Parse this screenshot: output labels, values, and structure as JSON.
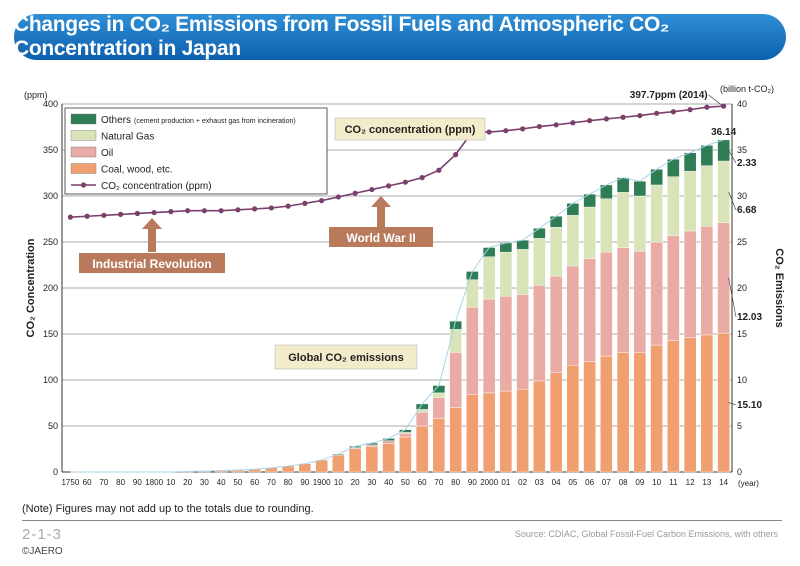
{
  "header": {
    "title": "Changes in CO₂ Emissions from Fossil Fuels and Atmospheric CO₂ Concentration in Japan"
  },
  "footer": {
    "note": "(Note) Figures may not add up to the totals due to rounding.",
    "figure_number": "2-1-3",
    "copyright": "©JAERO",
    "source": "Source: CDIAC, Global Fossil-Fuel Carbon Emissions, with others"
  },
  "colors": {
    "others": "#2e7d55",
    "natural_gas": "#d8e4b8",
    "oil": "#e9aba3",
    "coal": "#f0a070",
    "co2_line": "#7b3f6b",
    "arrow": "#b97a5c",
    "callout_bg": "#f3eccb"
  },
  "chart_data": {
    "type": "bar",
    "stacked": true,
    "left_axis": {
      "label": "CO₂ Concentration",
      "unit": "(ppm)",
      "range": [
        0,
        400
      ],
      "ticks": [
        "0",
        "50",
        "100",
        "150",
        "200",
        "250",
        "300",
        "350",
        "400"
      ]
    },
    "right_axis": {
      "label": "CO₂ Emissions",
      "unit": "(billion t-CO₂)",
      "range": [
        0,
        40
      ],
      "ticks": [
        "0",
        "5",
        "10",
        "15",
        "20",
        "25",
        "30",
        "35",
        "40"
      ]
    },
    "x_axis_unit": "(year)",
    "x_tick_labels": [
      "1750",
      "60",
      "70",
      "80",
      "90",
      "1800",
      "10",
      "20",
      "30",
      "40",
      "50",
      "60",
      "70",
      "80",
      "90",
      "1900",
      "10",
      "20",
      "30",
      "40",
      "50",
      "60",
      "70",
      "80",
      "90",
      "2000",
      "01",
      "02",
      "03",
      "04",
      "05",
      "06",
      "07",
      "08",
      "09",
      "10",
      "11",
      "12",
      "13",
      "14"
    ],
    "legend": [
      {
        "key": "others",
        "label": "Others",
        "sublabel": "(cement production + exhaust gas from incineration)"
      },
      {
        "key": "natural_gas",
        "label": "Natural Gas"
      },
      {
        "key": "oil",
        "label": "Oil"
      },
      {
        "key": "coal",
        "label": "Coal, wood, etc."
      },
      {
        "key": "co2",
        "label": "CO₂ concentration (ppm)"
      }
    ],
    "series": [
      {
        "name": "Coal, wood, etc.",
        "key": "coal",
        "values": [
          0,
          0,
          0,
          0,
          0,
          0,
          0,
          0.05,
          0.1,
          0.15,
          0.2,
          0.3,
          0.45,
          0.65,
          0.9,
          1.3,
          1.85,
          2.55,
          2.75,
          3.1,
          3.8,
          5.0,
          5.8,
          7.0,
          8.4,
          8.6,
          8.8,
          9.0,
          9.9,
          10.8,
          11.6,
          12.0,
          12.6,
          13.0,
          13.0,
          13.8,
          14.3,
          14.6,
          14.9,
          15.1
        ]
      },
      {
        "name": "Oil",
        "key": "oil",
        "values": [
          0,
          0,
          0,
          0,
          0,
          0,
          0,
          0,
          0,
          0,
          0,
          0,
          0,
          0,
          0,
          0,
          0,
          0.1,
          0.2,
          0.3,
          0.4,
          1.5,
          2.3,
          6.0,
          9.5,
          10.2,
          10.3,
          10.3,
          10.4,
          10.5,
          10.8,
          11.2,
          11.3,
          11.4,
          11.0,
          11.2,
          11.4,
          11.6,
          11.8,
          12.0
        ]
      },
      {
        "name": "Natural Gas",
        "key": "natural_gas",
        "values": [
          0,
          0,
          0,
          0,
          0,
          0,
          0,
          0,
          0,
          0,
          0,
          0,
          0,
          0,
          0,
          0,
          0,
          0,
          0,
          0,
          0.1,
          0.3,
          0.5,
          2.5,
          3.0,
          4.6,
          4.8,
          4.9,
          5.1,
          5.3,
          5.5,
          5.6,
          5.8,
          6.0,
          6.0,
          6.2,
          6.4,
          6.5,
          6.6,
          6.7
        ]
      },
      {
        "name": "Others",
        "key": "others",
        "values": [
          0,
          0,
          0,
          0,
          0,
          0,
          0,
          0,
          0,
          0,
          0,
          0,
          0,
          0,
          0,
          0,
          0.1,
          0.15,
          0.2,
          0.25,
          0.3,
          0.6,
          0.8,
          0.9,
          0.9,
          1.0,
          1.0,
          1.0,
          1.1,
          1.2,
          1.3,
          1.4,
          1.5,
          1.6,
          1.6,
          1.7,
          1.9,
          2.0,
          2.2,
          2.3
        ]
      },
      {
        "name": "CO₂ concentration (ppm)",
        "key": "co2",
        "axis": "left",
        "values": [
          277,
          278,
          279,
          280,
          281,
          282,
          283,
          284,
          284,
          284,
          285,
          286,
          287,
          289,
          292,
          295,
          299,
          303,
          307,
          311,
          315,
          320,
          328,
          345,
          370,
          369.5,
          371,
          373,
          375.5,
          377.4,
          379.6,
          381.9,
          383.8,
          385.6,
          387.4,
          389.9,
          391.6,
          393.9,
          396.5,
          397.7
        ]
      }
    ],
    "total_emissions_by_year": {
      "2014": "36.14"
    },
    "callouts": [
      {
        "id": "peak",
        "text": "397.7ppm (2014)"
      },
      {
        "id": "total",
        "text": "36.14"
      },
      {
        "id": "others",
        "text": "2.33"
      },
      {
        "id": "gas",
        "text": "6.68"
      },
      {
        "id": "oil",
        "text": "12.03"
      },
      {
        "id": "coal",
        "text": "15.10"
      }
    ],
    "annotations": {
      "co2_box": "CO₂ concentration (ppm)",
      "emissions_box": "Global CO₂ emissions",
      "industrial_revolution": "Industrial Revolution",
      "wwii": "World War II"
    }
  }
}
